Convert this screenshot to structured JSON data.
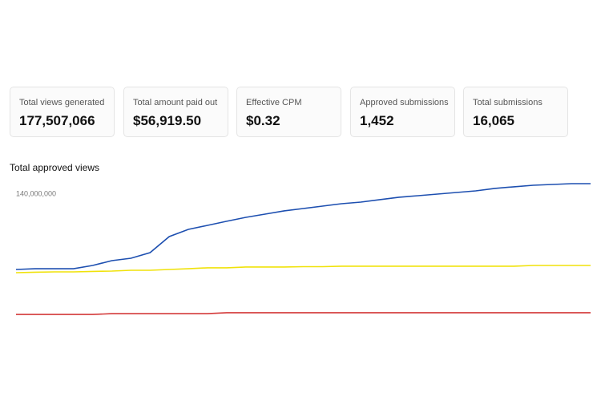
{
  "cards": [
    {
      "label": "Total views generated",
      "value": "177,507,066"
    },
    {
      "label": "Total amount paid out",
      "value": "$56,919.50"
    },
    {
      "label": "Effective CPM",
      "value": "$0.32"
    },
    {
      "label": "Approved submissions",
      "value": "1,452"
    },
    {
      "label": "Total submissions",
      "value": "16,065"
    }
  ],
  "chart_data": {
    "type": "line",
    "title": "Total approved views",
    "categories": [
      null,
      null,
      null,
      null,
      null,
      null,
      null,
      null,
      null,
      null,
      null,
      null,
      null,
      null,
      null,
      null,
      null,
      null,
      null,
      null,
      null,
      null,
      null,
      null,
      null,
      null,
      null,
      null,
      null,
      null,
      null
    ],
    "series": [
      {
        "color": "#1d4fb0",
        "values": [
          73500000,
          74200000,
          74200000,
          74200000,
          77100000,
          81300000,
          83400000,
          88400000,
          102500000,
          108900000,
          112400000,
          116000000,
          119500000,
          122300000,
          125200000,
          127300000,
          129400000,
          131500000,
          132900000,
          135100000,
          137200000,
          138600000,
          140000000,
          141400000,
          142800000,
          145000000,
          146400000,
          147800000,
          148500000,
          149200000,
          149200000
        ]
      },
      {
        "color": "#f0e20a",
        "values": [
          70700000,
          71100000,
          71400000,
          71400000,
          71800000,
          72100000,
          72800000,
          72800000,
          73500000,
          74200000,
          75000000,
          75000000,
          75700000,
          75700000,
          75700000,
          76000000,
          76000000,
          76400000,
          76400000,
          76400000,
          76400000,
          76400000,
          76400000,
          76400000,
          76400000,
          76400000,
          76400000,
          77100000,
          77100000,
          77100000,
          77100000
        ]
      },
      {
        "color": "#d43a3a",
        "values": [
          33900000,
          33900000,
          33900000,
          33900000,
          33900000,
          34600000,
          34600000,
          34600000,
          34600000,
          34600000,
          34600000,
          35400000,
          35400000,
          35400000,
          35400000,
          35400000,
          35400000,
          35400000,
          35400000,
          35400000,
          35400000,
          35400000,
          35400000,
          35400000,
          35400000,
          35400000,
          35400000,
          35400000,
          35400000,
          35400000,
          35400000
        ]
      }
    ],
    "ylim": [
      0,
      160000000
    ],
    "yticks": [
      {
        "value": 140000000,
        "label": "140,000,000"
      }
    ],
    "grid": false
  }
}
